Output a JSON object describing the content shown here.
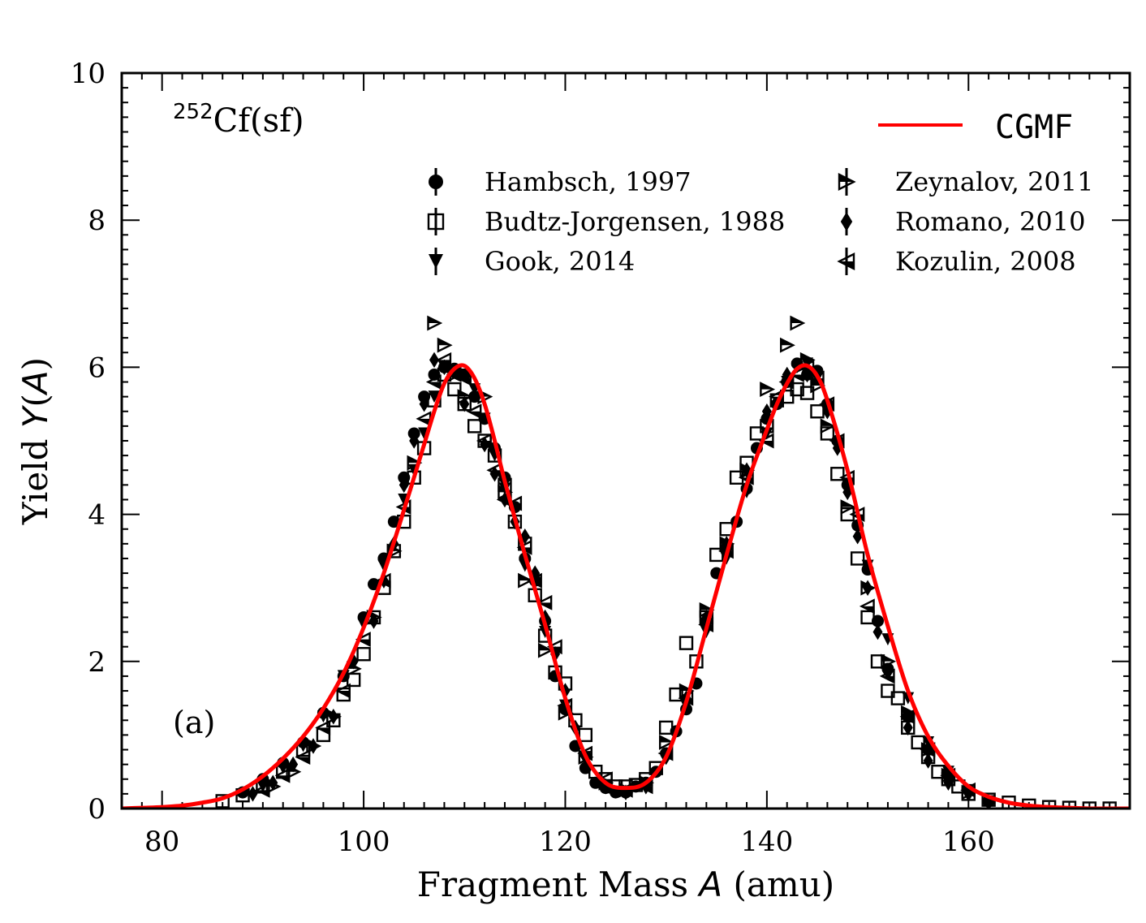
{
  "chart_data": {
    "type": "scatter",
    "title": "",
    "xlabel": {
      "pre": "Fragment Mass ",
      "ital": "A",
      "post": " (amu)"
    },
    "ylabel": {
      "pre": "Yield ",
      "ital": "Y",
      "open": "(",
      "ital2": "A",
      "close": ")"
    },
    "xlim": [
      76,
      176
    ],
    "ylim": [
      0,
      10
    ],
    "xticks": [
      80,
      100,
      120,
      140,
      160
    ],
    "yticks": [
      0,
      2,
      4,
      6,
      8,
      10
    ],
    "grid": false,
    "annotation": {
      "sup": "252",
      "text": "Cf(sf)"
    },
    "panel_label": "(a)",
    "legend": {
      "placement": "top-right",
      "model": "CGMF",
      "model_color": "#ff0000",
      "entries": [
        {
          "label": "Hambsch, 1997",
          "marker": "circle-filled"
        },
        {
          "label": "Budtz-Jorgensen, 1988",
          "marker": "square-open"
        },
        {
          "label": "Gook, 2014",
          "marker": "triangle-down-filled"
        },
        {
          "label": "Zeynalov, 2011",
          "marker": "triangle-right-half"
        },
        {
          "label": "Romano, 2010",
          "marker": "diamond-filled"
        },
        {
          "label": "Kozulin, 2008",
          "marker": "triangle-left-half"
        }
      ]
    },
    "series": [
      {
        "name": "CGMF",
        "kind": "line",
        "color": "#ff0000",
        "x": [
          76,
          78,
          80,
          82,
          84,
          86,
          88,
          90,
          92,
          94,
          96,
          98,
          100,
          102,
          104,
          106,
          107,
          108,
          109,
          110,
          111,
          112,
          113,
          114,
          116,
          118,
          120,
          122,
          124,
          126,
          128,
          130,
          132,
          134,
          136,
          138,
          140,
          141,
          142,
          143,
          144,
          145,
          146,
          148,
          150,
          152,
          154,
          156,
          158,
          160,
          162,
          164,
          166,
          168,
          170,
          172,
          174,
          176
        ],
        "y": [
          0.0,
          0.01,
          0.02,
          0.04,
          0.08,
          0.14,
          0.26,
          0.44,
          0.68,
          0.98,
          1.36,
          1.84,
          2.46,
          3.2,
          4.06,
          4.95,
          5.4,
          5.78,
          5.98,
          6.02,
          5.85,
          5.5,
          5.0,
          4.45,
          3.45,
          2.5,
          1.5,
          0.72,
          0.35,
          0.28,
          0.35,
          0.7,
          1.45,
          2.45,
          3.45,
          4.4,
          5.15,
          5.5,
          5.78,
          5.98,
          6.02,
          5.88,
          5.55,
          4.6,
          3.45,
          2.48,
          1.6,
          0.98,
          0.58,
          0.3,
          0.16,
          0.08,
          0.04,
          0.02,
          0.01,
          0.0,
          0.0,
          0.0
        ]
      },
      {
        "name": "Hambsch, 1997",
        "marker": "circle-filled",
        "x": [
          88,
          90,
          92,
          94,
          96,
          98,
          100,
          101,
          102,
          103,
          104,
          105,
          106,
          107,
          108,
          109,
          110,
          111,
          112,
          113,
          114,
          115,
          116,
          117,
          118,
          119,
          120,
          121,
          122,
          123,
          124,
          125,
          126,
          127,
          128,
          129,
          130,
          131,
          132,
          133,
          134,
          135,
          136,
          137,
          138,
          139,
          140,
          141,
          142,
          143,
          144,
          145,
          146,
          147,
          148,
          149,
          150,
          151,
          152,
          154,
          156,
          158,
          160,
          162
        ],
        "y": [
          0.22,
          0.4,
          0.62,
          0.9,
          1.3,
          1.8,
          2.6,
          3.05,
          3.4,
          3.9,
          4.5,
          5.1,
          5.6,
          5.9,
          6.0,
          5.98,
          5.9,
          5.6,
          5.3,
          4.9,
          4.5,
          4.1,
          3.4,
          3.1,
          2.55,
          1.8,
          1.35,
          0.85,
          0.55,
          0.35,
          0.28,
          0.22,
          0.22,
          0.3,
          0.35,
          0.5,
          0.75,
          1.05,
          1.35,
          1.7,
          2.55,
          3.2,
          3.55,
          3.9,
          4.35,
          4.9,
          5.3,
          5.5,
          5.8,
          6.05,
          5.9,
          5.95,
          5.5,
          5.0,
          4.4,
          3.85,
          3.25,
          2.55,
          1.9,
          1.25,
          0.8,
          0.45,
          0.25,
          0.1
        ]
      },
      {
        "name": "Budtz-Jorgensen, 1988",
        "marker": "square-open",
        "x": [
          86,
          88,
          90,
          92,
          94,
          96,
          97,
          98,
          99,
          100,
          101,
          102,
          103,
          104,
          105,
          106,
          107,
          108,
          109,
          110,
          111,
          112,
          113,
          114,
          115,
          116,
          117,
          118,
          119,
          120,
          121,
          122,
          123,
          124,
          125,
          126,
          127,
          128,
          129,
          130,
          131,
          132,
          133,
          134,
          135,
          136,
          137,
          138,
          139,
          140,
          141,
          142,
          143,
          144,
          145,
          146,
          147,
          148,
          149,
          150,
          151,
          152,
          153,
          154,
          155,
          156,
          157,
          158,
          159,
          160,
          162,
          164,
          166,
          168,
          170,
          172,
          174
        ],
        "y": [
          0.1,
          0.18,
          0.3,
          0.5,
          0.8,
          1.0,
          1.2,
          1.55,
          1.75,
          2.1,
          2.6,
          3.0,
          3.5,
          3.9,
          4.5,
          4.9,
          5.55,
          5.9,
          5.7,
          5.5,
          5.2,
          5.0,
          4.8,
          4.4,
          3.9,
          3.6,
          2.9,
          2.35,
          1.85,
          1.7,
          1.2,
          1.0,
          0.5,
          0.4,
          0.3,
          0.3,
          0.32,
          0.4,
          0.55,
          1.1,
          1.55,
          2.25,
          2.0,
          2.6,
          3.45,
          3.8,
          4.5,
          4.7,
          5.1,
          5.2,
          5.55,
          5.6,
          5.7,
          5.65,
          5.4,
          5.1,
          4.55,
          4.0,
          3.4,
          2.6,
          2.0,
          1.6,
          1.5,
          1.1,
          0.9,
          0.7,
          0.5,
          0.4,
          0.3,
          0.2,
          0.12,
          0.08,
          0.04,
          0.02,
          0.01,
          0.0,
          0.0
        ]
      },
      {
        "name": "Gook, 2014",
        "marker": "triangle-down-filled",
        "x": [
          90,
          92,
          94,
          96,
          98,
          100,
          102,
          104,
          105,
          106,
          107,
          108,
          109,
          110,
          111,
          112,
          113,
          114,
          116,
          118,
          120,
          122,
          124,
          126,
          128,
          130,
          132,
          134,
          136,
          138,
          140,
          142,
          143,
          144,
          145,
          146,
          148,
          150,
          152,
          154,
          156,
          158,
          160,
          162
        ],
        "y": [
          0.3,
          0.55,
          0.85,
          1.25,
          1.8,
          2.5,
          3.3,
          4.2,
          4.6,
          5.1,
          5.6,
          6.0,
          5.95,
          5.9,
          5.7,
          5.3,
          4.8,
          4.35,
          3.3,
          2.4,
          1.4,
          0.7,
          0.3,
          0.2,
          0.3,
          0.7,
          1.4,
          2.4,
          3.4,
          4.3,
          5.1,
          5.8,
          6.0,
          6.05,
          5.85,
          5.4,
          4.4,
          3.3,
          2.3,
          1.5,
          0.9,
          0.5,
          0.25,
          0.1
        ]
      },
      {
        "name": "Zeynalov, 2011",
        "marker": "triangle-right-half",
        "x": [
          91,
          93,
          95,
          97,
          99,
          101,
          103,
          105,
          107,
          108,
          109,
          110,
          112,
          114,
          116,
          118,
          120,
          122,
          124,
          126,
          128,
          130,
          132,
          134,
          136,
          138,
          140,
          142,
          143,
          144,
          145,
          146,
          148,
          150,
          152,
          154,
          156,
          158,
          160
        ],
        "y": [
          0.3,
          0.5,
          0.85,
          1.25,
          1.9,
          2.6,
          3.5,
          4.7,
          6.6,
          6.3,
          5.9,
          5.6,
          5.6,
          4.3,
          3.1,
          2.15,
          1.3,
          0.7,
          0.35,
          0.25,
          0.35,
          0.9,
          1.6,
          2.7,
          3.6,
          4.6,
          5.7,
          6.3,
          6.6,
          6.1,
          5.75,
          5.2,
          4.1,
          3.0,
          2.0,
          1.3,
          0.8,
          0.45,
          0.22
        ]
      },
      {
        "name": "Romano, 2010",
        "marker": "diamond-filled",
        "x": [
          89,
          91,
          93,
          95,
          97,
          99,
          101,
          102,
          103,
          104,
          105,
          106,
          107,
          108,
          110,
          112,
          113,
          114,
          115,
          116,
          117,
          118,
          119,
          120,
          121,
          122,
          124,
          126,
          128,
          130,
          132,
          134,
          136,
          138,
          140,
          142,
          144,
          146,
          147,
          148,
          149,
          150,
          151,
          152,
          154,
          156,
          158,
          160,
          162
        ],
        "y": [
          0.2,
          0.35,
          0.6,
          0.85,
          1.25,
          2.0,
          2.55,
          3.1,
          3.6,
          4.4,
          5.0,
          5.5,
          6.1,
          6.0,
          5.5,
          4.95,
          4.55,
          4.2,
          3.9,
          3.7,
          3.2,
          2.6,
          2.1,
          1.6,
          1.1,
          0.7,
          0.3,
          0.22,
          0.3,
          0.7,
          1.5,
          2.6,
          3.6,
          4.6,
          5.4,
          5.9,
          5.9,
          5.4,
          4.9,
          4.3,
          3.7,
          3.0,
          2.4,
          1.85,
          1.1,
          0.65,
          0.35,
          0.2,
          0.08
        ]
      },
      {
        "name": "Kozulin, 2008",
        "marker": "triangle-left-half",
        "x": [
          90,
          92,
          94,
          96,
          98,
          100,
          102,
          104,
          106,
          107,
          108,
          109,
          110,
          111,
          112,
          113,
          114,
          115,
          116,
          117,
          118,
          119,
          120,
          122,
          124,
          126,
          128,
          130,
          132,
          134,
          136,
          138,
          140,
          141,
          142,
          143,
          144,
          145,
          146,
          147,
          148,
          149,
          150,
          152,
          154,
          156,
          158,
          160
        ],
        "y": [
          0.25,
          0.45,
          0.7,
          1.1,
          1.6,
          2.3,
          3.1,
          4.1,
          5.3,
          5.8,
          6.1,
          5.9,
          5.85,
          5.4,
          5.0,
          4.6,
          4.2,
          4.15,
          3.55,
          3.1,
          2.8,
          2.2,
          1.4,
          0.75,
          0.4,
          0.25,
          0.3,
          0.75,
          1.5,
          2.5,
          3.5,
          4.5,
          5.0,
          5.6,
          5.8,
          5.9,
          6.0,
          5.85,
          5.5,
          5.0,
          4.5,
          4.0,
          2.75,
          1.8,
          1.25,
          0.8,
          0.45,
          0.25
        ]
      }
    ]
  }
}
